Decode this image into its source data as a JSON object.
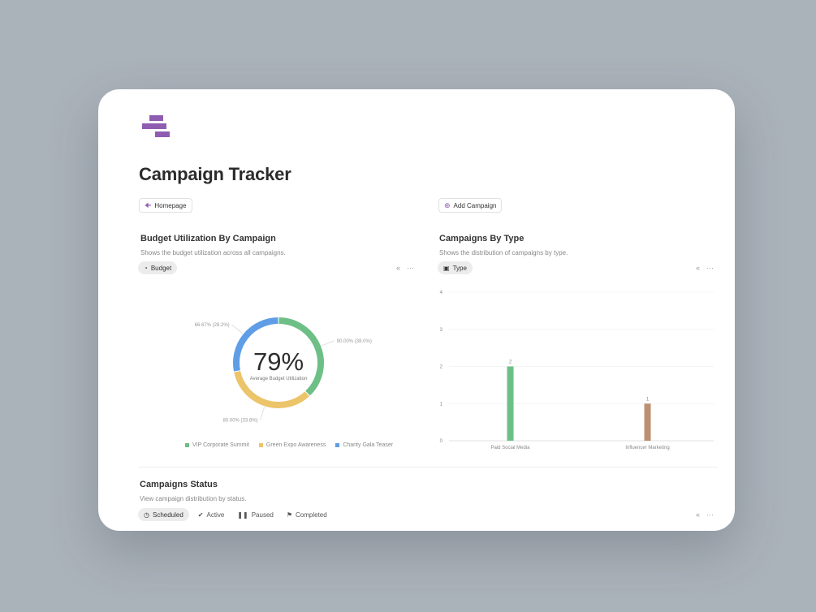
{
  "page": {
    "title": "Campaign Tracker"
  },
  "colors": {
    "brand": "#8e5db1",
    "green": "#6dbf86",
    "yellow": "#ecc46a",
    "blue": "#5f9ee6",
    "brown": "#bc9072"
  },
  "nav": {
    "homepage_label": "Homepage",
    "add_campaign_label": "Add Campaign"
  },
  "budget": {
    "title": "Budget Utilization By Campaign",
    "description": "Shows the budget utilization across all campaigns.",
    "filter_label": "Budget",
    "center_value": "79%",
    "center_label": "Average Budget Utilization"
  },
  "types": {
    "title": "Campaigns By Type",
    "description": "Shows the distribution of campaigns by type.",
    "filter_label": "Type"
  },
  "status": {
    "title": "Campaigns Status",
    "description": "View campaign distribution by status.",
    "tabs": [
      "Scheduled",
      "Active",
      "Paused",
      "Completed"
    ]
  },
  "toolbar": {
    "collapse_glyph": "«",
    "more_glyph": "···"
  },
  "chart_data": [
    {
      "type": "pie",
      "labels": [
        "VIP Corporate Summit",
        "Green Expo Awareness",
        "Charity Gala Teaser"
      ],
      "values": [
        38.0,
        33.8,
        28.2
      ],
      "data_labels": [
        "90.00% (38.0%)",
        "80.00% (33.8%)",
        "66.67% (28.2%)"
      ],
      "colors": [
        "#6dbf86",
        "#ecc46a",
        "#5f9ee6"
      ],
      "legend_position": "bottom"
    },
    {
      "type": "bar",
      "categories": [
        "Paid Social Media",
        "Influencer Marketing"
      ],
      "values": [
        2,
        1
      ],
      "colors": [
        "#6dbf86",
        "#bc9072"
      ],
      "yticks": [
        0,
        1,
        2,
        3,
        4
      ],
      "ylim": [
        0,
        4
      ],
      "grid": true
    }
  ]
}
